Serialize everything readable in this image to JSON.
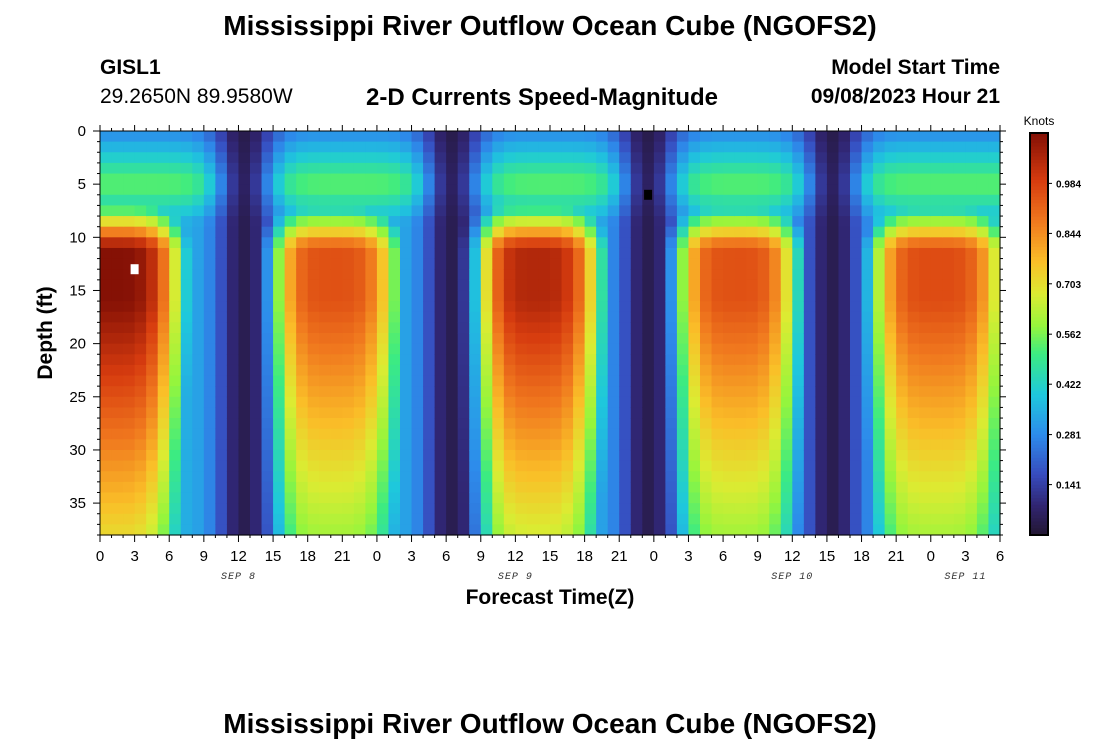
{
  "title": "Mississippi River Outflow Ocean Cube (NGOFS2)",
  "bottom_title": "Mississippi River Outflow Ocean Cube (NGOFS2)",
  "station": {
    "id": "GISL1",
    "coords": "29.2650N  89.9580W"
  },
  "model_start": {
    "label": "Model Start Time",
    "value": "09/08/2023 Hour 21"
  },
  "colors": {
    "background": "#ffffff",
    "axis": "#000000",
    "marker_max": "#ffffff",
    "marker_min": "#000000"
  },
  "chart_data": {
    "type": "heatmap",
    "title": "2-D Currents Speed-Magnitude",
    "xlabel": "Forecast Time(Z)",
    "ylabel": "Depth (ft)",
    "x_range_hours": [
      0,
      78
    ],
    "x_ticks": [
      "0",
      "3",
      "6",
      "9",
      "12",
      "15",
      "18",
      "21",
      "0",
      "3",
      "6",
      "9",
      "12",
      "15",
      "18",
      "21",
      "0",
      "3",
      "6",
      "9",
      "12",
      "15",
      "18",
      "21",
      "0",
      "3",
      "6"
    ],
    "date_labels": [
      {
        "text": "SEP 8",
        "hour": 12
      },
      {
        "text": "SEP 9",
        "hour": 36
      },
      {
        "text": "SEP 10",
        "hour": 60
      },
      {
        "text": "SEP 11",
        "hour": 75
      }
    ],
    "y_range_ft": [
      0,
      38
    ],
    "y_ticks": [
      "0",
      "5",
      "10",
      "15",
      "20",
      "25",
      "30",
      "35"
    ],
    "y_tick_values": [
      0,
      5,
      10,
      15,
      20,
      25,
      30,
      35
    ],
    "colorbar": {
      "label": "Knots",
      "range": [
        0.0,
        1.125
      ],
      "ticks": [
        "0.984",
        "0.844",
        "0.703",
        "0.562",
        "0.422",
        "0.281",
        "0.141"
      ],
      "tick_values": [
        0.984,
        0.844,
        0.703,
        0.562,
        0.422,
        0.281,
        0.141
      ]
    },
    "flow_cycles": [
      {
        "center_hour": 1,
        "peak_knots": 1.12
      },
      {
        "center_hour": 20,
        "peak_knots": 0.95
      },
      {
        "center_hour": 37.5,
        "peak_knots": 1.05
      },
      {
        "center_hour": 55,
        "peak_knots": 0.95
      },
      {
        "center_hour": 72.5,
        "peak_knots": 0.96
      }
    ],
    "slack_hours": [
      12.5,
      30.5,
      47.5,
      63.5
    ],
    "surface_layer_knots": 0.55,
    "max_marker": {
      "hour": 3,
      "depth_ft": 13,
      "label": "max"
    },
    "min_marker": {
      "hour": 47.5,
      "depth_ft": 6,
      "label": "min"
    }
  }
}
